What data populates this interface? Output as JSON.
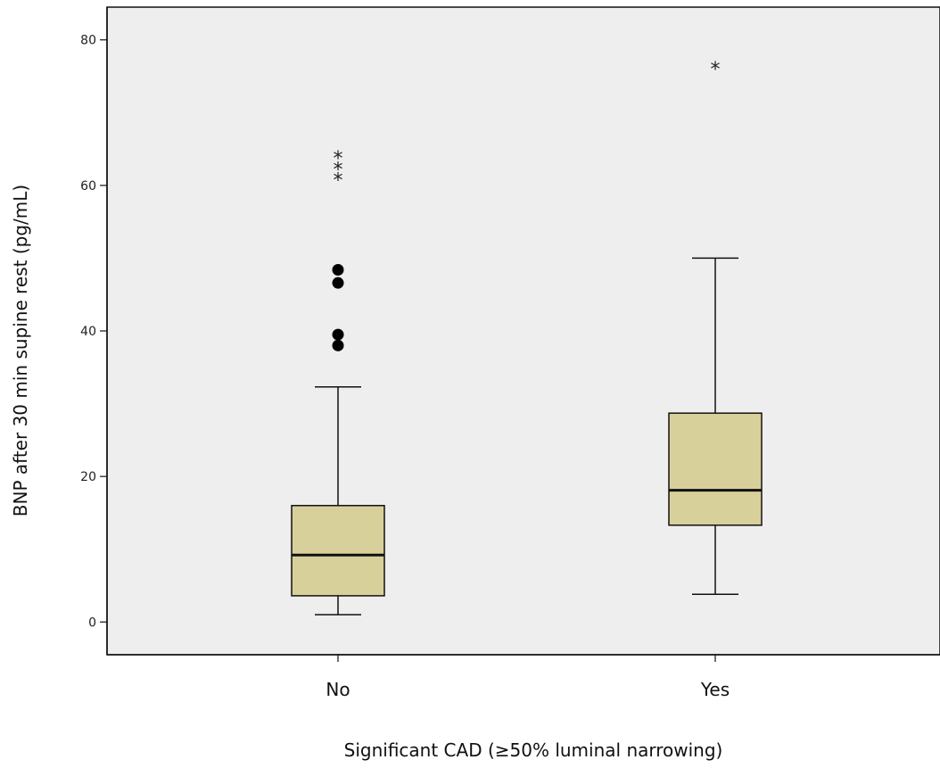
{
  "chart_data": {
    "type": "boxplot",
    "xlabel": "Significant CAD (≥50% luminal narrowing)",
    "ylabel": "BNP after 30 min supine rest (pg/mL)",
    "ylim": [
      -4.5,
      84.5
    ],
    "yticks": [
      0,
      20,
      40,
      60,
      80
    ],
    "grid": false,
    "background": "#efeeee",
    "box_color": "#d8d09a",
    "categories": [
      "No",
      "Yes"
    ],
    "boxes": [
      {
        "category": "No",
        "whisker_low": 1.0,
        "q1": 3.6,
        "median": 9.2,
        "q3": 16.0,
        "whisker_high": 32.3,
        "outliers": [
          38.0,
          39.5,
          46.6,
          48.4
        ],
        "extremes": [
          61.0,
          62.5,
          64.0
        ]
      },
      {
        "category": "Yes",
        "whisker_low": 3.8,
        "q1": 13.3,
        "median": 18.1,
        "q3": 28.7,
        "whisker_high": 50.0,
        "outliers": [],
        "extremes": [
          76.3
        ]
      }
    ]
  }
}
